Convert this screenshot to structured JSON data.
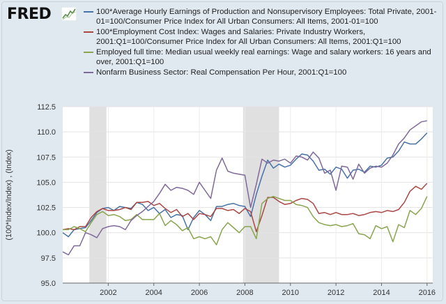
{
  "logo": {
    "text": "FRED",
    "icon": "trend-line-icon"
  },
  "legend": [
    {
      "label": "100*Average Hourly Earnings of Production and Nonsupervisory Employees: Total Private, 2001-01=100/Consumer Price Index for All Urban Consumers: All Items, 2001-01=100",
      "color": "#4572a7"
    },
    {
      "label": "100*Employment Cost Index: Wages and Salaries: Private Industry Workers, 2001:Q1=100/Consumer Price Index for All Urban Consumers: All Items, 2001:Q1=100",
      "color": "#aa4643"
    },
    {
      "label": "Employed full time: Median usual weekly real earnings: Wage and salary workers: 16 years and over, 2001:Q1=100",
      "color": "#89a54e"
    },
    {
      "label": "Nonfarm Business Sector: Real Compensation Per Hour, 2001:Q1=100",
      "color": "#80699b"
    }
  ],
  "chart_data": {
    "type": "line",
    "title": "",
    "xlabel": "",
    "ylabel": "(100*Index/Index) , (Index)",
    "xlim": [
      2000.0,
      2016.25
    ],
    "ylim": [
      95.0,
      112.5
    ],
    "xticks": [
      2002,
      2004,
      2006,
      2008,
      2010,
      2012,
      2014,
      2016
    ],
    "yticks": [
      95.0,
      97.5,
      100.0,
      102.5,
      105.0,
      107.5,
      110.0,
      112.5
    ],
    "recessions": [
      [
        2001.17,
        2001.92
      ],
      [
        2007.92,
        2009.5
      ]
    ],
    "series": [
      {
        "name": "100*Average Hourly Earnings of Production and Nonsupervisory Employees",
        "color": "#4572a7",
        "x": [
          2000.0,
          2000.25,
          2000.5,
          2000.75,
          2001.0,
          2001.25,
          2001.5,
          2001.75,
          2002.0,
          2002.25,
          2002.5,
          2002.75,
          2003.0,
          2003.25,
          2003.5,
          2003.75,
          2004.0,
          2004.25,
          2004.5,
          2004.75,
          2005.0,
          2005.25,
          2005.5,
          2005.75,
          2006.0,
          2006.25,
          2006.5,
          2006.75,
          2007.0,
          2007.25,
          2007.5,
          2007.75,
          2008.0,
          2008.25,
          2008.5,
          2008.75,
          2009.0,
          2009.25,
          2009.5,
          2009.75,
          2010.0,
          2010.25,
          2010.5,
          2010.75,
          2011.0,
          2011.25,
          2011.5,
          2011.75,
          2012.0,
          2012.25,
          2012.5,
          2012.75,
          2013.0,
          2013.25,
          2013.5,
          2013.75,
          2014.0,
          2014.25,
          2014.5,
          2014.75,
          2015.0,
          2015.25,
          2015.5,
          2015.75,
          2016.0
        ],
        "y": [
          100.0,
          99.6,
          100.3,
          100.4,
          100.5,
          101.2,
          102.0,
          102.4,
          102.5,
          102.2,
          102.6,
          102.5,
          102.4,
          103.0,
          102.8,
          102.2,
          102.5,
          101.9,
          102.3,
          101.5,
          101.8,
          101.7,
          100.3,
          101.5,
          102.2,
          101.8,
          101.2,
          102.6,
          102.6,
          102.8,
          102.9,
          102.7,
          102.6,
          101.6,
          103.8,
          105.6,
          107.2,
          106.4,
          106.8,
          106.5,
          106.7,
          107.3,
          107.8,
          107.7,
          107.1,
          106.2,
          106.3,
          105.8,
          106.5,
          106.3,
          105.4,
          106.2,
          106.3,
          106.0,
          106.6,
          106.5,
          106.7,
          107.4,
          107.5,
          108.1,
          109.0,
          108.8,
          108.8,
          109.3,
          109.9
        ]
      },
      {
        "name": "100*Employment Cost Index: Wages and Salaries: Private Industry Workers",
        "color": "#aa4643",
        "x": [
          2000.0,
          2000.25,
          2000.5,
          2000.75,
          2001.0,
          2001.25,
          2001.5,
          2001.75,
          2002.0,
          2002.25,
          2002.5,
          2002.75,
          2003.0,
          2003.25,
          2003.5,
          2003.75,
          2004.0,
          2004.25,
          2004.5,
          2004.75,
          2005.0,
          2005.25,
          2005.5,
          2005.75,
          2006.0,
          2006.25,
          2006.5,
          2006.75,
          2007.0,
          2007.25,
          2007.5,
          2007.75,
          2008.0,
          2008.25,
          2008.5,
          2008.75,
          2009.0,
          2009.25,
          2009.5,
          2009.75,
          2010.0,
          2010.25,
          2010.5,
          2010.75,
          2011.0,
          2011.25,
          2011.5,
          2011.75,
          2012.0,
          2012.25,
          2012.5,
          2012.75,
          2013.0,
          2013.25,
          2013.5,
          2013.75,
          2014.0,
          2014.25,
          2014.5,
          2014.75,
          2015.0,
          2015.25,
          2015.5,
          2015.75,
          2016.0
        ],
        "y": [
          100.3,
          100.4,
          100.3,
          100.6,
          100.6,
          101.5,
          102.1,
          102.4,
          102.2,
          102.2,
          102.3,
          102.5,
          102.3,
          103.0,
          103.0,
          103.1,
          102.7,
          102.9,
          102.4,
          102.0,
          102.3,
          101.6,
          101.9,
          101.3,
          101.9,
          101.8,
          101.6,
          102.4,
          102.4,
          102.2,
          102.3,
          101.9,
          102.4,
          102.1,
          100.1,
          101.7,
          103.5,
          103.5,
          103.1,
          102.8,
          102.9,
          103.2,
          103.4,
          103.3,
          102.9,
          101.9,
          102.0,
          101.8,
          102.0,
          101.8,
          101.8,
          101.9,
          101.7,
          101.8,
          102.0,
          102.1,
          102.0,
          102.2,
          102.1,
          102.3,
          103.0,
          104.1,
          104.6,
          104.3,
          104.9
        ]
      },
      {
        "name": "Employed full time: Median usual weekly real earnings",
        "color": "#89a54e",
        "x": [
          2000.0,
          2000.25,
          2000.5,
          2000.75,
          2001.0,
          2001.25,
          2001.5,
          2001.75,
          2002.0,
          2002.25,
          2002.5,
          2002.75,
          2003.0,
          2003.25,
          2003.5,
          2003.75,
          2004.0,
          2004.25,
          2004.5,
          2004.75,
          2005.0,
          2005.25,
          2005.5,
          2005.75,
          2006.0,
          2006.25,
          2006.5,
          2006.75,
          2007.0,
          2007.25,
          2007.5,
          2007.75,
          2008.0,
          2008.25,
          2008.5,
          2008.75,
          2009.0,
          2009.25,
          2009.5,
          2009.75,
          2010.0,
          2010.25,
          2010.5,
          2010.75,
          2011.0,
          2011.25,
          2011.5,
          2011.75,
          2012.0,
          2012.25,
          2012.5,
          2012.75,
          2013.0,
          2013.25,
          2013.5,
          2013.75,
          2014.0,
          2014.25,
          2014.5,
          2014.75,
          2015.0,
          2015.25,
          2015.5,
          2015.75,
          2016.0
        ],
        "y": [
          100.3,
          100.3,
          100.6,
          100.4,
          100.1,
          101.0,
          101.8,
          102.1,
          101.7,
          101.8,
          101.6,
          101.2,
          101.3,
          101.8,
          101.3,
          101.3,
          101.3,
          101.9,
          100.7,
          101.2,
          100.8,
          100.2,
          100.5,
          99.4,
          99.6,
          99.4,
          99.6,
          98.8,
          100.3,
          101.0,
          100.5,
          100.0,
          100.6,
          100.6,
          99.4,
          102.9,
          103.4,
          103.6,
          103.4,
          103.2,
          103.2,
          102.8,
          102.7,
          102.5,
          101.6,
          101.0,
          100.8,
          100.7,
          100.8,
          100.6,
          100.7,
          100.9,
          99.9,
          99.8,
          99.4,
          100.7,
          100.4,
          100.6,
          99.1,
          100.8,
          100.5,
          102.2,
          101.8,
          102.4,
          103.6
        ]
      },
      {
        "name": "Nonfarm Business Sector: Real Compensation Per Hour",
        "color": "#80699b",
        "x": [
          2000.0,
          2000.25,
          2000.5,
          2000.75,
          2001.0,
          2001.25,
          2001.5,
          2001.75,
          2002.0,
          2002.25,
          2002.5,
          2002.75,
          2003.0,
          2003.25,
          2003.5,
          2003.75,
          2004.0,
          2004.25,
          2004.5,
          2004.75,
          2005.0,
          2005.25,
          2005.5,
          2005.75,
          2006.0,
          2006.25,
          2006.5,
          2006.75,
          2007.0,
          2007.25,
          2007.5,
          2007.75,
          2008.0,
          2008.25,
          2008.5,
          2008.75,
          2009.0,
          2009.25,
          2009.5,
          2009.75,
          2010.0,
          2010.25,
          2010.5,
          2010.75,
          2011.0,
          2011.25,
          2011.5,
          2011.75,
          2012.0,
          2012.25,
          2012.5,
          2012.75,
          2013.0,
          2013.25,
          2013.5,
          2013.75,
          2014.0,
          2014.25,
          2014.5,
          2014.75,
          2015.0,
          2015.25,
          2015.5,
          2015.75,
          2016.0
        ],
        "y": [
          98.1,
          97.8,
          98.7,
          98.7,
          100.0,
          99.8,
          99.5,
          100.4,
          100.6,
          100.7,
          100.6,
          100.3,
          101.2,
          101.7,
          102.1,
          102.6,
          103.1,
          103.9,
          104.8,
          104.2,
          104.5,
          104.4,
          104.2,
          103.8,
          105.0,
          104.2,
          103.4,
          106.2,
          107.4,
          106.1,
          105.9,
          105.8,
          105.7,
          102.5,
          104.8,
          107.3,
          106.9,
          107.2,
          107.1,
          107.3,
          106.9,
          107.6,
          107.5,
          107.2,
          108.0,
          107.4,
          105.9,
          106.2,
          104.2,
          106.6,
          106.5,
          105.3,
          106.8,
          105.9,
          106.4,
          106.6,
          106.5,
          106.9,
          107.7,
          108.8,
          109.4,
          110.2,
          110.6,
          111.0,
          111.1
        ]
      }
    ]
  }
}
